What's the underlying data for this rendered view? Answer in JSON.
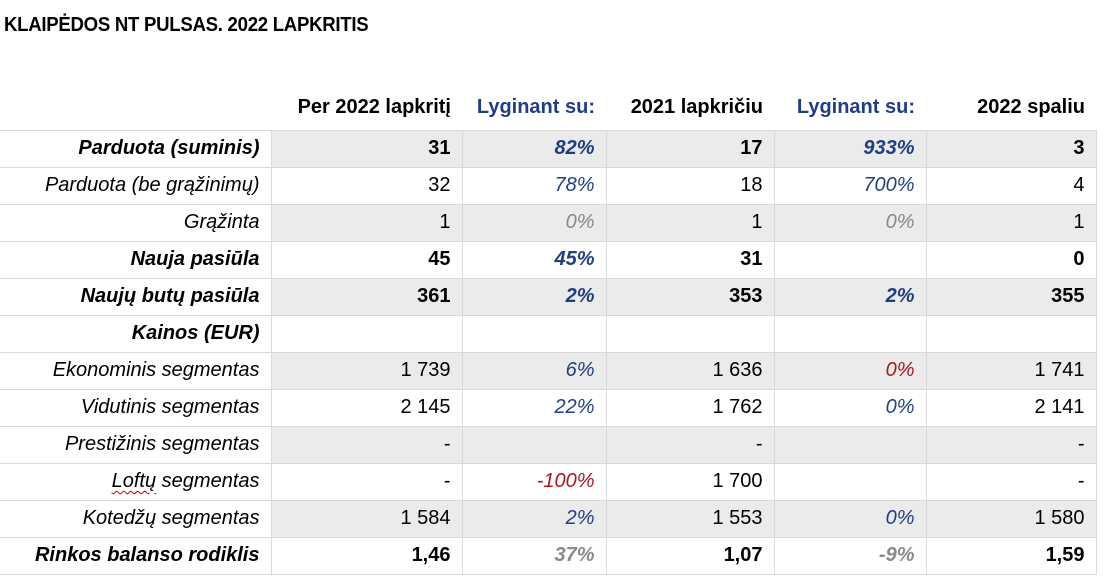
{
  "title": "KLAIPĖDOS NT PULSAS. 2022 LAPKRITIS",
  "colors": {
    "accent_blue": "#1f3f82",
    "negative_red": "#a31a1f",
    "neutral_grey": "#8a8a8a",
    "row_shade": "#ebebeb"
  },
  "headers": [
    "Per 2022 lapkritį",
    "Lyginant su:",
    "2021 lapkričiu",
    "Lyginant su:",
    "2022 spaliu"
  ],
  "rows": [
    {
      "label": "Parduota (suminis)",
      "v1": "31",
      "p1": "82%",
      "v2": "17",
      "p2": "933%",
      "v3": "3"
    },
    {
      "label": "Parduota (be grąžinimų)",
      "v1": "32",
      "p1": "78%",
      "v2": "18",
      "p2": "700%",
      "v3": "4"
    },
    {
      "label": "Grąžinta",
      "v1": "1",
      "p1": "0%",
      "v2": "1",
      "p2": "0%",
      "v3": "1"
    },
    {
      "label": "Nauja pasiūla",
      "v1": "45",
      "p1": "45%",
      "v2": "31",
      "p2": "",
      "v3": "0"
    },
    {
      "label": "Naujų butų pasiūla",
      "v1": "361",
      "p1": "2%",
      "v2": "353",
      "p2": "2%",
      "v3": "355"
    },
    {
      "label": "Kainos (EUR)",
      "v1": "",
      "p1": "",
      "v2": "",
      "p2": "",
      "v3": ""
    },
    {
      "label": "Ekonominis segmentas",
      "v1": "1 739",
      "p1": "6%",
      "v2": "1 636",
      "p2": "0%",
      "v3": "1 741"
    },
    {
      "label": "Vidutinis segmentas",
      "v1": "2 145",
      "p1": "22%",
      "v2": "1 762",
      "p2": "0%",
      "v3": "2 141"
    },
    {
      "label": "Prestižinis segmentas",
      "v1": "-",
      "p1": "",
      "v2": "-",
      "p2": "",
      "v3": "-"
    },
    {
      "label_part1": "Loftų",
      "label_part2": " segmentas",
      "v1": "-",
      "p1": "-100%",
      "v2": "1 700",
      "p2": "",
      "v3": "-"
    },
    {
      "label": "Kotedžų segmentas",
      "v1": "1 584",
      "p1": "2%",
      "v2": "1 553",
      "p2": "0%",
      "v3": "1 580"
    },
    {
      "label": "Rinkos balanso rodiklis",
      "v1": "1,46",
      "p1": "37%",
      "v2": "1,07",
      "p2": "-9%",
      "v3": "1,59"
    }
  ]
}
